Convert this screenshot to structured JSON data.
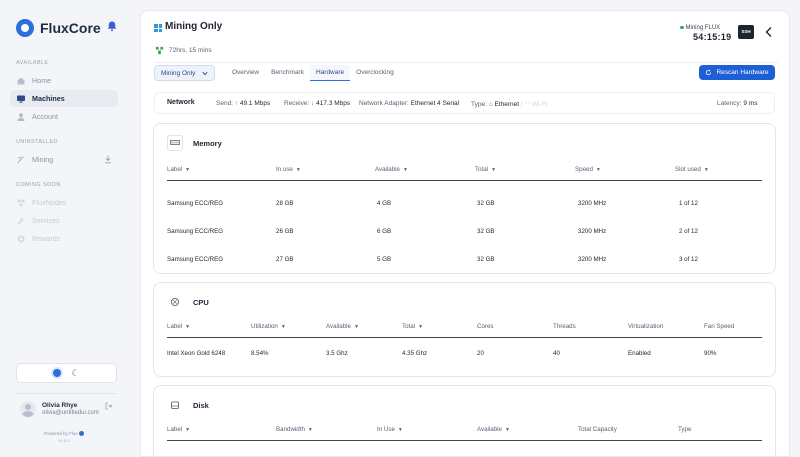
{
  "app": {
    "name": "FluxCore"
  },
  "sidebar": {
    "sections": [
      {
        "label": "AVAILABLE",
        "items": [
          {
            "label": "Home"
          },
          {
            "label": "Machines"
          },
          {
            "label": "Account"
          }
        ]
      },
      {
        "label": "UNINSTALLED",
        "items": [
          {
            "label": "Mining"
          }
        ]
      },
      {
        "label": "COMING SOON",
        "items": [
          {
            "label": "FluxNodes"
          },
          {
            "label": "Services"
          },
          {
            "label": "Rewards"
          }
        ]
      }
    ],
    "user": {
      "name": "Olivia Rhye",
      "email": "olivia@untitledui.com"
    },
    "powered_by": "Powered by Flux",
    "version": "v1.0.0"
  },
  "header": {
    "title": "Mining Only",
    "uptime": "72hrs, 15 mins",
    "status": "Mining FLUX",
    "timer": "54:15:19",
    "ssh_label": "SSH"
  },
  "toolbar": {
    "mode_value": "Mining Only",
    "tabs": [
      {
        "label": "Overview"
      },
      {
        "label": "Benchmark"
      },
      {
        "label": "Hardware"
      },
      {
        "label": "Overclocking"
      }
    ],
    "rescan_label": "Rescan Hardware"
  },
  "network": {
    "title": "Network",
    "send_label": "Send:",
    "send_value": "49.1 Mbps",
    "receive_label": "Receive:",
    "receive_value": "417.3 Mbps",
    "adapter_label": "Network Adapter:",
    "adapter_value": "Ethernet 4 Serial",
    "type_label": "Type:",
    "type_ethernet": "Ethernet",
    "type_wifi": "Wi-Fi",
    "latency_label": "Latency:",
    "latency_value": "9 ms"
  },
  "memory": {
    "title": "Memory",
    "headers": [
      "Label",
      "In use",
      "Available",
      "Total",
      "Speed",
      "Slot used"
    ],
    "rows": [
      [
        "Samsung ECC/REG",
        "28 GB",
        "4 GB",
        "32 GB",
        "3200 MHz",
        "1 of 12"
      ],
      [
        "Samsung ECC/REG",
        "26 GB",
        "6 GB",
        "32 GB",
        "3200 MHz",
        "2 of 12"
      ],
      [
        "Samsung ECC/REG",
        "27 GB",
        "5 GB",
        "32 GB",
        "3200 MHz",
        "3 of 12"
      ]
    ]
  },
  "cpu": {
    "title": "CPU",
    "headers": [
      "Label",
      "Utilization",
      "Available",
      "Total",
      "Cores",
      "Threads",
      "Virtualization",
      "Fan Speed"
    ],
    "rows": [
      [
        "Intel Xeon Gold 6248",
        "8.54%",
        "3.5 Ghz",
        "4.35 Ghz",
        "20",
        "40",
        "Enabled",
        "90%"
      ]
    ]
  },
  "disk": {
    "title": "Disk",
    "headers": [
      "Label",
      "Bandwidth",
      "In Use",
      "Available",
      "Total Capacity",
      "Type"
    ]
  },
  "colors": {
    "accent": "#1f5fd6",
    "brand": "#2d6fd8",
    "success": "#2fa84f",
    "danger": "#e34a4a"
  }
}
